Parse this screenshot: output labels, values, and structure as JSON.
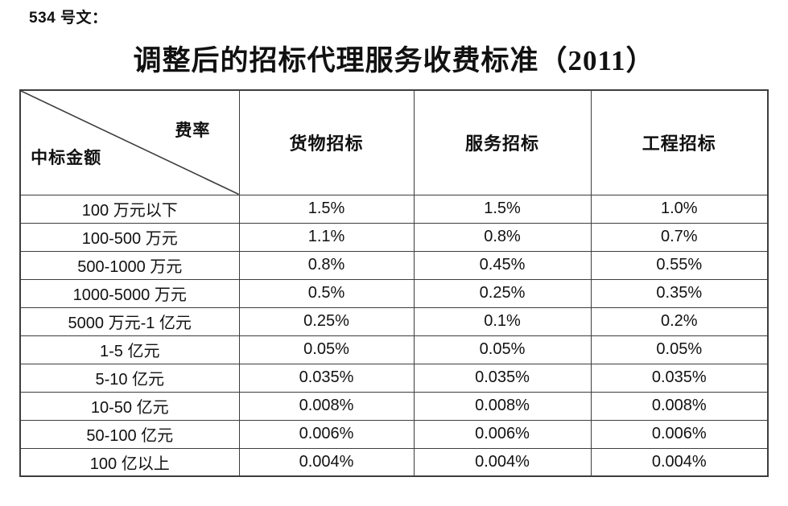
{
  "page": {
    "doc_label": "534 号文：",
    "title": "调整后的招标代理服务收费标准（2011）"
  },
  "table": {
    "corner": {
      "top_right": "费率",
      "bottom_left": "中标金额"
    },
    "columns": [
      "货物招标",
      "服务招标",
      "工程招标"
    ],
    "rows": [
      {
        "amount": "100 万元以下",
        "goods": "1.5%",
        "services": "1.5%",
        "works": "1.0%"
      },
      {
        "amount": "100-500 万元",
        "goods": "1.1%",
        "services": "0.8%",
        "works": "0.7%"
      },
      {
        "amount": "500-1000 万元",
        "goods": "0.8%",
        "services": "0.45%",
        "works": "0.55%"
      },
      {
        "amount": "1000-5000 万元",
        "goods": "0.5%",
        "services": "0.25%",
        "works": "0.35%"
      },
      {
        "amount": "5000 万元-1 亿元",
        "goods": "0.25%",
        "services": "0.1%",
        "works": "0.2%"
      },
      {
        "amount": "1-5 亿元",
        "goods": "0.05%",
        "services": "0.05%",
        "works": "0.05%"
      },
      {
        "amount": "5-10 亿元",
        "goods": "0.035%",
        "services": "0.035%",
        "works": "0.035%"
      },
      {
        "amount": "10-50 亿元",
        "goods": "0.008%",
        "services": "0.008%",
        "works": "0.008%"
      },
      {
        "amount": "50-100 亿元",
        "goods": "0.006%",
        "services": "0.006%",
        "works": "0.006%"
      },
      {
        "amount": "100 亿以上",
        "goods": "0.004%",
        "services": "0.004%",
        "works": "0.004%"
      }
    ]
  },
  "colors": {
    "border": "#3d3d3d",
    "text": "#111111",
    "background": "#ffffff"
  }
}
